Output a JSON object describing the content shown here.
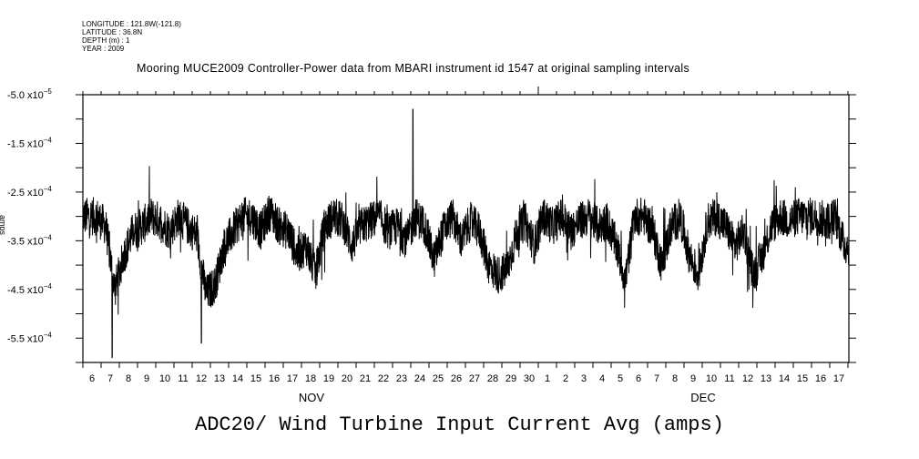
{
  "header": {
    "longitude": "LONGITUDE : 121.8W(-121.8)",
    "latitude": "LATITUDE : 36.8N",
    "depth": "DEPTH (m) : 1",
    "year": "YEAR : 2009"
  },
  "chart_data": {
    "type": "line",
    "title": "Mooring MUCE2009 Controller-Power data from MBARI instrument id 1547 at original sampling intervals",
    "xlabel": "ADC20/ Wind Turbine Input Current Avg (amps)",
    "ylabel": "amps",
    "ylim": [
      -0.0006,
      -5e-05
    ],
    "y_ticks": [
      "-5.0 x10-5",
      "-1.5 x10-4",
      "-2.5 x10-4",
      "-3.5 x10-4",
      "-4.5 x10-4",
      "-5.5 x10-4"
    ],
    "y_tick_values": [
      -5e-05,
      -0.00015,
      -0.00025,
      -0.00035,
      -0.00045,
      -0.00055
    ],
    "x_range": [
      "2009-11-06",
      "2009-12-18"
    ],
    "x_tick_labels": [
      "6",
      "7",
      "8",
      "9",
      "10",
      "11",
      "12",
      "13",
      "14",
      "15",
      "16",
      "17",
      "18",
      "19",
      "20",
      "21",
      "22",
      "23",
      "24",
      "25",
      "26",
      "27",
      "28",
      "29",
      "30",
      "1",
      "2",
      "3",
      "4",
      "5",
      "6",
      "7",
      "8",
      "9",
      "10",
      "11",
      "12",
      "13",
      "14",
      "15",
      "16",
      "17"
    ],
    "month_labels": [
      "NOV",
      "DEC"
    ],
    "grid": false,
    "series": [
      {
        "name": "ADC20 Wind Turbine Input Current Avg",
        "units": "1e-4 amps",
        "sampling": "half-day baseline (approximate), starting 2009-11-06",
        "values": [
          -3.0,
          -3.0,
          -3.2,
          -4.5,
          -3.8,
          -3.3,
          -3.2,
          -3.0,
          -3.1,
          -3.3,
          -3.0,
          -3.2,
          -3.4,
          -4.6,
          -4.4,
          -3.6,
          -3.3,
          -3.0,
          -3.0,
          -3.3,
          -2.9,
          -3.2,
          -3.3,
          -3.8,
          -3.6,
          -4.2,
          -3.2,
          -3.0,
          -3.1,
          -3.6,
          -3.2,
          -3.1,
          -3.0,
          -3.3,
          -3.2,
          -3.5,
          -3.0,
          -3.2,
          -3.9,
          -3.3,
          -3.0,
          -3.5,
          -3.1,
          -3.3,
          -4.0,
          -4.2,
          -4.1,
          -3.4,
          -3.1,
          -3.6,
          -3.0,
          -3.2,
          -3.0,
          -3.3,
          -3.1,
          -3.0,
          -3.2,
          -3.1,
          -3.6,
          -4.3,
          -3.0,
          -3.0,
          -3.3,
          -4.0,
          -3.2,
          -3.0,
          -3.8,
          -4.2,
          -3.1,
          -3.0,
          -3.2,
          -3.6,
          -3.3,
          -4.2,
          -3.8,
          -3.2,
          -3.0,
          -3.1,
          -3.0,
          -3.0,
          -3.0,
          -3.1,
          -3.0,
          -3.6
        ],
        "noise_amplitude": 0.5,
        "extremes": [
          {
            "day": 1.6,
            "value": -5.9
          },
          {
            "day": 6.5,
            "value": -5.6
          },
          {
            "day": 18.1,
            "value": -0.8
          }
        ]
      }
    ]
  }
}
